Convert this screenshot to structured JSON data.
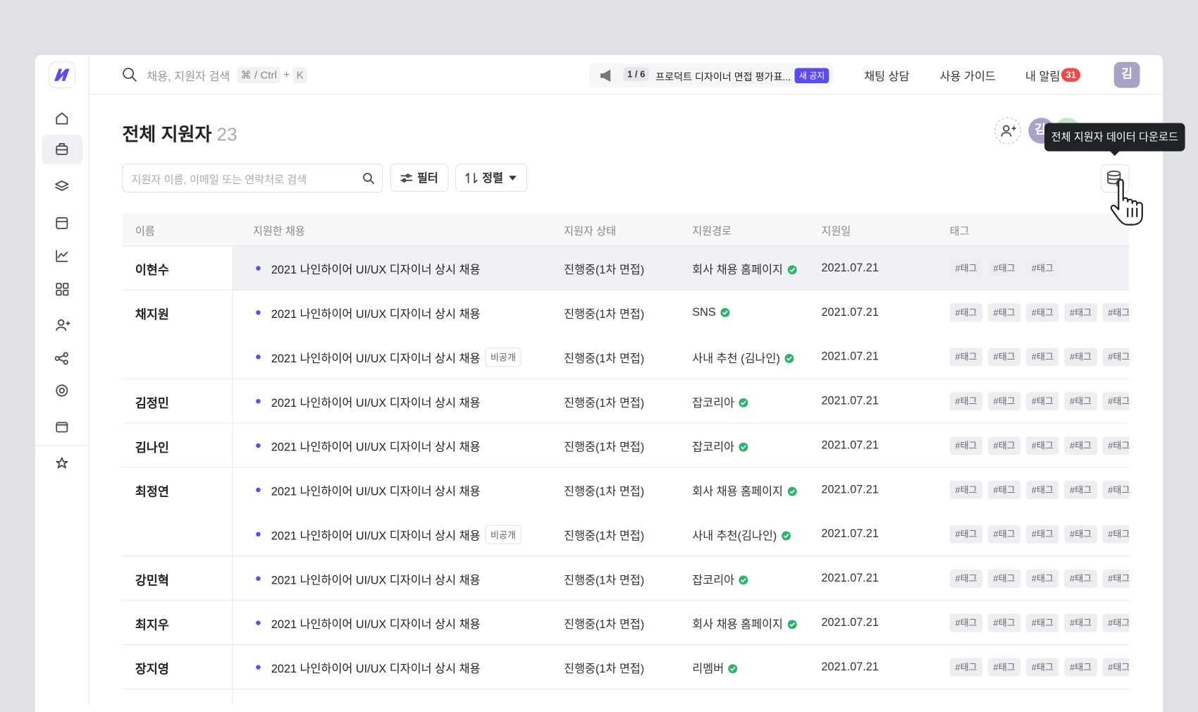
{
  "search": {
    "placeholder": "채용, 지원자 검색",
    "shortcut": "⌘ / Ctrl",
    "plus": "+",
    "key": "K"
  },
  "notice": {
    "counter": "1 / 6",
    "text": "프로덕트 디자이너 면접 평가표...",
    "badge": "새 공지"
  },
  "nav": {
    "chat": "채팅 상담",
    "guide": "사용 가이드",
    "alerts": "내 알림",
    "alert_count": 31,
    "avatar": "김"
  },
  "page": {
    "title": "전체 지원자",
    "count": 23,
    "member_avatar": "김",
    "tooltip": "전체 지원자 데이터 다운로드"
  },
  "toolbar": {
    "search_placeholder": "지원자 이름, 이메일 또는 연락처로 검색",
    "filter": "필터",
    "sort": "정렬"
  },
  "table": {
    "columns": [
      "이름",
      "지원한 채용",
      "지원자 상태",
      "지원경로",
      "지원일",
      "태그"
    ],
    "rows": [
      {
        "name": "이현수",
        "applications": [
          {
            "job": "2021 나인하이어 UI/UX 디자이너 상시 채용",
            "status": "진행중(1차 면접)",
            "source": "회사 채용 홈페이지",
            "date": "2021.07.21",
            "tags": [
              "#태그",
              "#태그",
              "#태그"
            ]
          }
        ]
      },
      {
        "name": "채지원",
        "applications": [
          {
            "job": "2021 나인하이어 UI/UX 디자이너 상시 채용",
            "status": "진행중(1차 면접)",
            "source": "SNS",
            "date": "2021.07.21",
            "tags": [
              "#태그",
              "#태그",
              "#태그",
              "#태그",
              "#태그"
            ]
          },
          {
            "job": "2021 나인하이어 UI/UX 디자이너 상시 채용",
            "badge": "비공개",
            "status": "진행중(1차 면접)",
            "source": "사내 추천 (김나인)",
            "date": "2021.07.21",
            "tags": [
              "#태그",
              "#태그",
              "#태그",
              "#태그",
              "#태그"
            ]
          }
        ]
      },
      {
        "name": "김정민",
        "applications": [
          {
            "job": "2021 나인하이어 UI/UX 디자이너 상시 채용",
            "status": "진행중(1차 면접)",
            "source": "잡코리아",
            "date": "2021.07.21",
            "tags": [
              "#태그",
              "#태그",
              "#태그",
              "#태그",
              "#태그"
            ]
          }
        ]
      },
      {
        "name": "김나인",
        "applications": [
          {
            "job": "2021 나인하이어 UI/UX 디자이너 상시 채용",
            "status": "진행중(1차 면접)",
            "source": "잡코리아",
            "date": "2021.07.21",
            "tags": [
              "#태그",
              "#태그",
              "#태그",
              "#태그",
              "#태그"
            ]
          }
        ]
      },
      {
        "name": "최정연",
        "applications": [
          {
            "job": "2021 나인하이어 UI/UX 디자이너 상시 채용",
            "status": "진행중(1차 면접)",
            "source": "회사 채용 홈페이지",
            "date": "2021.07.21",
            "tags": [
              "#태그",
              "#태그",
              "#태그",
              "#태그",
              "#태그"
            ]
          },
          {
            "job": "2021 나인하이어 UI/UX 디자이너 상시 채용",
            "badge": "비공개",
            "status": "진행중(1차 면접)",
            "source": "사내 추천(김나인)",
            "date": "2021.07.21",
            "tags": [
              "#태그",
              "#태그",
              "#태그",
              "#태그",
              "#태그"
            ]
          }
        ]
      },
      {
        "name": "강민혁",
        "applications": [
          {
            "job": "2021 나인하이어 UI/UX 디자이너 상시 채용",
            "status": "진행중(1차 면접)",
            "source": "잡코리아",
            "date": "2021.07.21",
            "tags": [
              "#태그",
              "#태그",
              "#태그",
              "#태그",
              "#태그"
            ]
          }
        ]
      },
      {
        "name": "최지우",
        "applications": [
          {
            "job": "2021 나인하이어 UI/UX 디자이너 상시 채용",
            "status": "진행중(1차 면접)",
            "source": "회사 채용 홈페이지",
            "date": "2021.07.21",
            "tags": [
              "#태그",
              "#태그",
              "#태그",
              "#태그",
              "#태그"
            ]
          }
        ]
      },
      {
        "name": "장지영",
        "applications": [
          {
            "job": "2021 나인하이어 UI/UX 디자이너 상시 채용",
            "status": "진행중(1차 면접)",
            "source": "리멤버",
            "date": "2021.07.21",
            "tags": [
              "#태그",
              "#태그",
              "#태그",
              "#태그",
              "#태그"
            ]
          }
        ]
      }
    ]
  }
}
